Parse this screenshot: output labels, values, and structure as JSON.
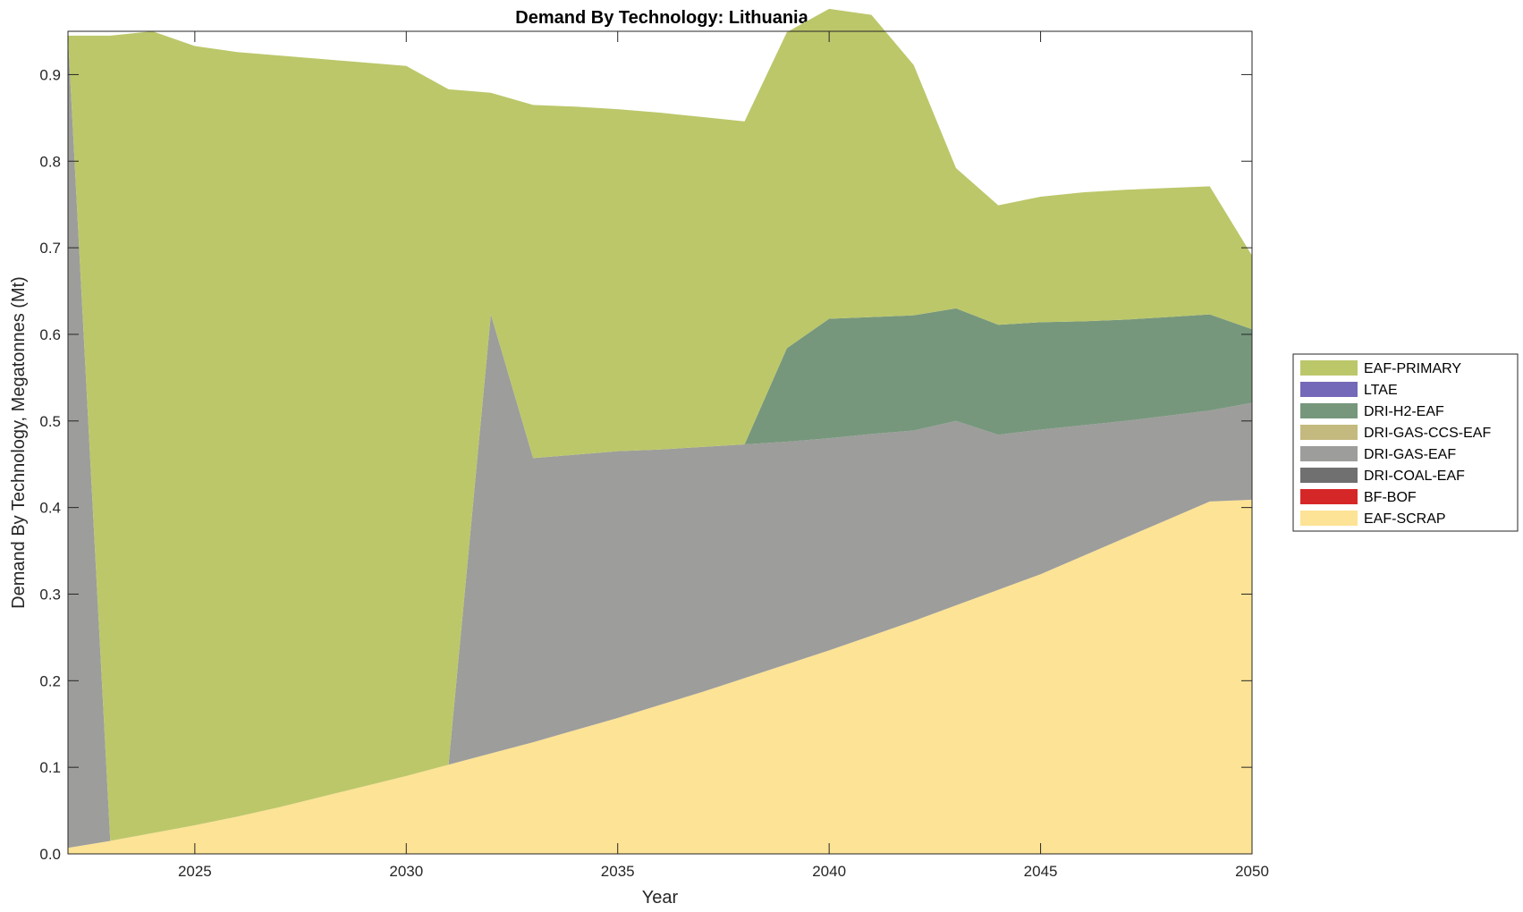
{
  "chart_data": {
    "type": "area",
    "stacked": true,
    "title": "Demand By Technology: Lithuania",
    "xlabel": "Year",
    "ylabel": "Demand By Technology, Megatonnes (Mt)",
    "xlim": [
      2022,
      2050
    ],
    "ylim": [
      0,
      0.95
    ],
    "x_ticks": [
      2025,
      2030,
      2035,
      2040,
      2045,
      2050
    ],
    "y_ticks": [
      "0.0",
      "0.1",
      "0.2",
      "0.3",
      "0.4",
      "0.5",
      "0.6",
      "0.7",
      "0.8",
      "0.9"
    ],
    "grid": false,
    "legend_position": "right",
    "x": [
      2022,
      2023,
      2024,
      2025,
      2026,
      2027,
      2028,
      2029,
      2030,
      2031,
      2032,
      2033,
      2034,
      2035,
      2036,
      2037,
      2038,
      2039,
      2040,
      2041,
      2042,
      2043,
      2044,
      2045,
      2046,
      2047,
      2048,
      2049,
      2050
    ],
    "series": [
      {
        "name": "EAF-SCRAP",
        "color": "#FDE395",
        "values": [
          0.007,
          0.015,
          0.024,
          0.033,
          0.043,
          0.054,
          0.066,
          0.078,
          0.09,
          0.103,
          0.116,
          0.129,
          0.143,
          0.157,
          0.172,
          0.187,
          0.203,
          0.219,
          0.235,
          0.252,
          0.269,
          0.287,
          0.305,
          0.323,
          0.344,
          0.365,
          0.386,
          0.407,
          0.409
        ]
      },
      {
        "name": "BF-BOF",
        "color": "#D62728",
        "values": [
          0,
          0,
          0,
          0,
          0,
          0,
          0,
          0,
          0,
          0,
          0,
          0,
          0,
          0,
          0,
          0,
          0,
          0,
          0,
          0,
          0,
          0,
          0,
          0,
          0,
          0,
          0,
          0,
          0
        ]
      },
      {
        "name": "DRI-COAL-EAF",
        "color": "#707070",
        "values": [
          0,
          0,
          0,
          0,
          0,
          0,
          0,
          0,
          0,
          0,
          0,
          0,
          0,
          0,
          0,
          0,
          0,
          0,
          0,
          0,
          0,
          0,
          0,
          0,
          0,
          0,
          0,
          0,
          0
        ]
      },
      {
        "name": "DRI-GAS-EAF",
        "color": "#9D9D9B",
        "values": [
          0.938,
          0,
          0,
          0,
          0,
          0,
          0,
          0,
          0,
          0,
          0.507,
          0.328,
          0.318,
          0.308,
          0.295,
          0.283,
          0.27,
          0.257,
          0.245,
          0.233,
          0.22,
          0.213,
          0.179,
          0.167,
          0.151,
          0.135,
          0.12,
          0.105,
          0.112
        ]
      },
      {
        "name": "DRI-GAS-CCS-EAF",
        "color": "#C4B97F",
        "values": [
          0,
          0,
          0,
          0,
          0,
          0,
          0,
          0,
          0,
          0,
          0,
          0,
          0,
          0,
          0,
          0,
          0,
          0,
          0,
          0,
          0,
          0,
          0,
          0,
          0,
          0,
          0,
          0,
          0
        ]
      },
      {
        "name": "DRI-H2-EAF",
        "color": "#76977C",
        "values": [
          0,
          0,
          0,
          0,
          0,
          0,
          0,
          0,
          0,
          0,
          0,
          0,
          0,
          0,
          0,
          0,
          0,
          0.108,
          0.138,
          0.135,
          0.133,
          0.13,
          0.127,
          0.124,
          0.12,
          0.117,
          0.114,
          0.111,
          0.085
        ]
      },
      {
        "name": "LTAE",
        "color": "#7468B8",
        "values": [
          0,
          0,
          0,
          0,
          0,
          0,
          0,
          0,
          0,
          0,
          0,
          0,
          0,
          0,
          0,
          0,
          0,
          0,
          0,
          0,
          0,
          0,
          0,
          0,
          0,
          0,
          0,
          0,
          0
        ]
      },
      {
        "name": "EAF-PRIMARY",
        "color": "#BCC76A",
        "values": [
          0,
          0.93,
          0.926,
          0.9,
          0.883,
          0.868,
          0.852,
          0.836,
          0.82,
          0.78,
          0.256,
          0.408,
          0.402,
          0.395,
          0.389,
          0.381,
          0.373,
          0.365,
          0.358,
          0.349,
          0.289,
          0.162,
          0.138,
          0.145,
          0.149,
          0.15,
          0.149,
          0.148,
          0.085
        ]
      }
    ],
    "legend_order": [
      "EAF-PRIMARY",
      "LTAE",
      "DRI-H2-EAF",
      "DRI-GAS-CCS-EAF",
      "DRI-GAS-EAF",
      "DRI-COAL-EAF",
      "BF-BOF",
      "EAF-SCRAP"
    ]
  }
}
